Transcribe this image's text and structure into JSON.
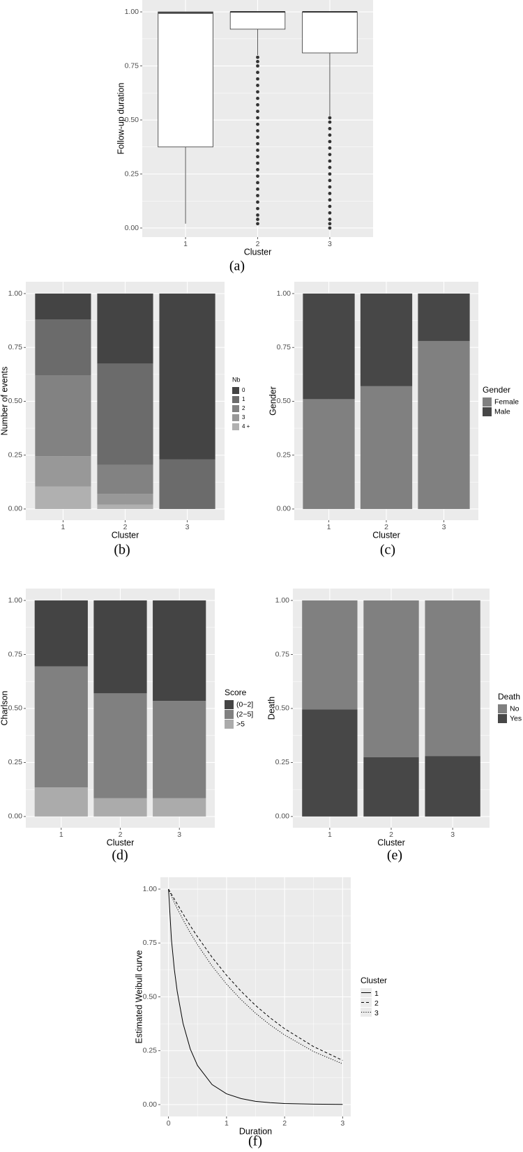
{
  "chart_data": [
    {
      "type": "box",
      "caption": "(a)",
      "x_label": "Cluster",
      "y_label": "Follow-up duration",
      "categories": [
        "1",
        "2",
        "3"
      ],
      "boxes": [
        {
          "min": 0.02,
          "q1": 0.375,
          "median": 0.995,
          "q3": 1.0,
          "max": 1.0
        },
        {
          "min": 0.8,
          "q1": 0.92,
          "median": 1.0,
          "q3": 1.0,
          "max": 1.0,
          "outliers": [
            0.02,
            0.04,
            0.06,
            0.09,
            0.12,
            0.15,
            0.18,
            0.21,
            0.24,
            0.27,
            0.3,
            0.33,
            0.36,
            0.39,
            0.42,
            0.45,
            0.48,
            0.51,
            0.54,
            0.57,
            0.6,
            0.63,
            0.66,
            0.69,
            0.72,
            0.75,
            0.77,
            0.79
          ]
        },
        {
          "min": 0.52,
          "q1": 0.81,
          "median": 1.0,
          "q3": 1.0,
          "max": 1.0,
          "outliers": [
            0.0,
            0.02,
            0.04,
            0.07,
            0.1,
            0.13,
            0.16,
            0.19,
            0.22,
            0.25,
            0.28,
            0.31,
            0.34,
            0.37,
            0.4,
            0.43,
            0.46,
            0.49,
            0.51
          ]
        }
      ],
      "fill": "#ffffff",
      "color": "#333333",
      "ylim": [
        -0.042,
        1.055
      ],
      "yticks": [
        {
          "value": 0,
          "label": "0.00"
        },
        {
          "value": 0.25,
          "label": "0.25"
        },
        {
          "value": 0.5,
          "label": "0.50"
        },
        {
          "value": 0.75,
          "label": "0.75"
        },
        {
          "value": 1,
          "label": "1.00"
        }
      ],
      "grid": true
    },
    {
      "type": "stacked_bar",
      "caption": "(b)",
      "x_label": "Cluster",
      "y_label": "Number of events",
      "legend_title": "Nb",
      "stack": "top-first",
      "categories": [
        "1",
        "2",
        "3"
      ],
      "series": [
        {
          "name": "0",
          "color": "#444444",
          "values": [
            0.12,
            0.325,
            0.77
          ]
        },
        {
          "name": "1",
          "color": "#6b6b6b",
          "values": [
            0.26,
            0.47,
            0.23
          ]
        },
        {
          "name": "2",
          "color": "#828282",
          "values": [
            0.375,
            0.135,
            0
          ]
        },
        {
          "name": "3",
          "color": "#989898",
          "values": [
            0.14,
            0.05,
            0
          ]
        },
        {
          "name": "4 +",
          "color": "#b0b0b0",
          "values": [
            0.105,
            0.02,
            0
          ]
        }
      ],
      "ylim": [
        -0.052,
        1.055
      ],
      "yticks": [
        {
          "value": 0,
          "label": "0.00"
        },
        {
          "value": 0.25,
          "label": "0.25"
        },
        {
          "value": 0.5,
          "label": "0.50"
        },
        {
          "value": 0.75,
          "label": "0.75"
        },
        {
          "value": 1,
          "label": "1.00"
        }
      ],
      "grid": true
    },
    {
      "type": "stacked_bar",
      "caption": "(c)",
      "x_label": "Cluster",
      "y_label": "Gender",
      "legend_title": "Gender",
      "stack": "bottom-first",
      "categories": [
        "1",
        "2",
        "3"
      ],
      "series": [
        {
          "name": "Female",
          "color": "#808080",
          "values": [
            0.51,
            0.57,
            0.78
          ]
        },
        {
          "name": "Male",
          "color": "#474747",
          "values": [
            0.49,
            0.43,
            0.22
          ]
        }
      ],
      "ylim": [
        -0.052,
        1.055
      ],
      "yticks": [
        {
          "value": 0,
          "label": "0.00"
        },
        {
          "value": 0.25,
          "label": "0.25"
        },
        {
          "value": 0.5,
          "label": "0.50"
        },
        {
          "value": 0.75,
          "label": "0.75"
        },
        {
          "value": 1,
          "label": "1.00"
        }
      ],
      "grid": true
    },
    {
      "type": "stacked_bar",
      "caption": "(d)",
      "x_label": "Cluster",
      "y_label": "Charlson",
      "legend_title": "Score",
      "stack": "top-first",
      "categories": [
        "1",
        "2",
        "3"
      ],
      "series": [
        {
          "name": "(0−2]",
          "color": "#444444",
          "values": [
            0.305,
            0.43,
            0.465
          ]
        },
        {
          "name": "(2−5]",
          "color": "#808080",
          "values": [
            0.56,
            0.485,
            0.45
          ]
        },
        {
          "name": ">5",
          "color": "#ababab",
          "values": [
            0.135,
            0.085,
            0.085
          ]
        }
      ],
      "ylim": [
        -0.052,
        1.055
      ],
      "yticks": [
        {
          "value": 0,
          "label": "0.00"
        },
        {
          "value": 0.25,
          "label": "0.25"
        },
        {
          "value": 0.5,
          "label": "0.50"
        },
        {
          "value": 0.75,
          "label": "0.75"
        },
        {
          "value": 1,
          "label": "1.00"
        }
      ],
      "grid": true
    },
    {
      "type": "stacked_bar",
      "caption": "(e)",
      "x_label": "Cluster",
      "y_label": "Death",
      "legend_title": "Death",
      "stack": "top-first",
      "categories": [
        "1",
        "2",
        "3"
      ],
      "series": [
        {
          "name": "No",
          "color": "#808080",
          "values": [
            0.505,
            0.725,
            0.72
          ]
        },
        {
          "name": "Yes",
          "color": "#474747",
          "values": [
            0.495,
            0.275,
            0.28
          ]
        }
      ],
      "ylim": [
        -0.052,
        1.055
      ],
      "yticks": [
        {
          "value": 0,
          "label": "0.00"
        },
        {
          "value": 0.25,
          "label": "0.25"
        },
        {
          "value": 0.5,
          "label": "0.50"
        },
        {
          "value": 0.75,
          "label": "0.75"
        },
        {
          "value": 1,
          "label": "1.00"
        }
      ],
      "grid": true
    },
    {
      "type": "line",
      "caption": "(f)",
      "x_label": "Duration",
      "y_label": "Estimated Weibull curve",
      "legend_title": "Cluster",
      "x": [
        0,
        0.05,
        0.1,
        0.15,
        0.25,
        0.375,
        0.5,
        0.75,
        1,
        1.25,
        1.5,
        1.75,
        2,
        2.5,
        3
      ],
      "series": [
        {
          "name": "1",
          "color": "#000000",
          "dash": "solid",
          "values": [
            1,
            0.767,
            0.628,
            0.525,
            0.377,
            0.258,
            0.181,
            0.093,
            0.05,
            0.028,
            0.015,
            0.009,
            0.005,
            0.002,
            0.001
          ]
        },
        {
          "name": "2",
          "color": "#000000",
          "dash": "dashed",
          "values": [
            1,
            0.977,
            0.954,
            0.931,
            0.885,
            0.83,
            0.779,
            0.684,
            0.6,
            0.526,
            0.46,
            0.403,
            0.352,
            0.269,
            0.205
          ]
        },
        {
          "name": "3",
          "color": "#000000",
          "dash": "dotted",
          "values": [
            1,
            0.968,
            0.938,
            0.91,
            0.858,
            0.797,
            0.742,
            0.643,
            0.559,
            0.487,
            0.424,
            0.37,
            0.323,
            0.246,
            0.189
          ]
        }
      ],
      "xlim": [
        -0.14,
        3.14
      ],
      "xticks": [
        0,
        1,
        2,
        3
      ],
      "ylim": [
        -0.055,
        1.055
      ],
      "yticks": [
        {
          "value": 0,
          "label": "0.00"
        },
        {
          "value": 0.25,
          "label": "0.25"
        },
        {
          "value": 0.5,
          "label": "0.50"
        },
        {
          "value": 0.75,
          "label": "0.75"
        },
        {
          "value": 1,
          "label": "1.00"
        }
      ],
      "grid": true
    }
  ]
}
